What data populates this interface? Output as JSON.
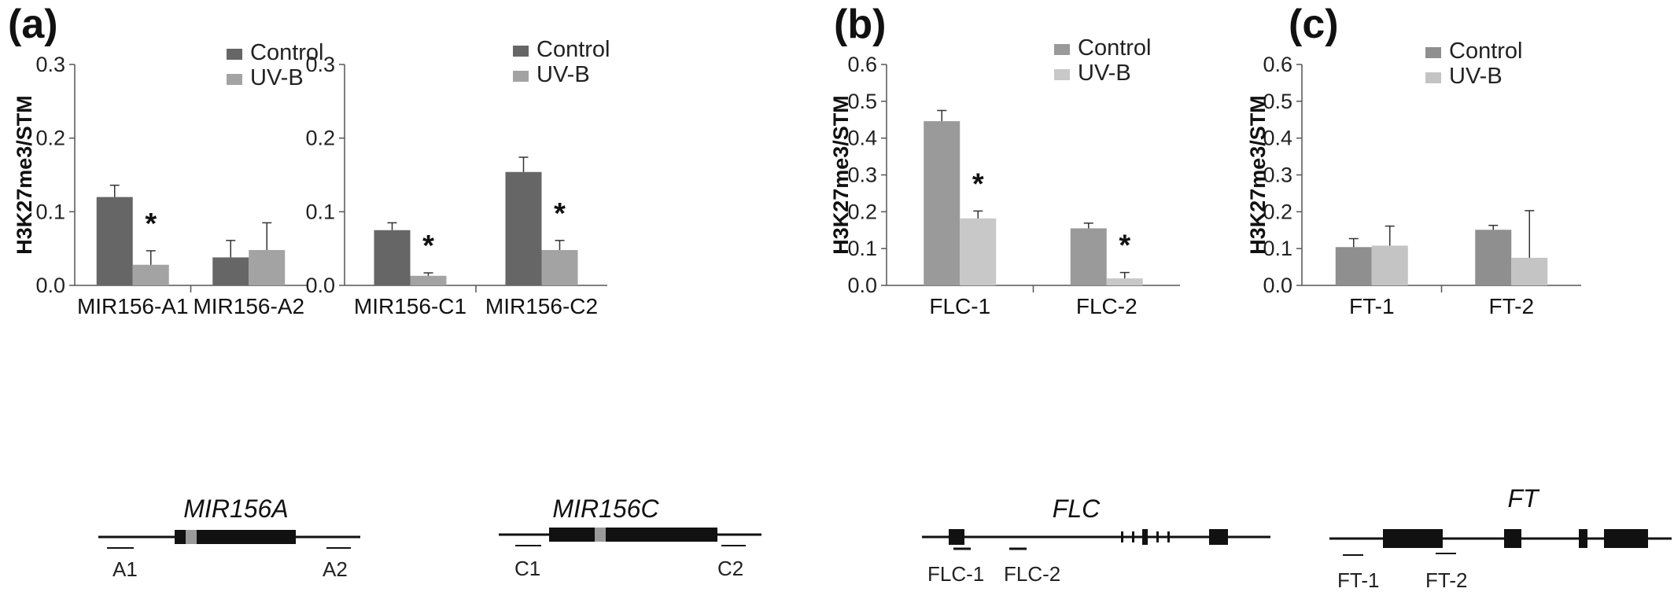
{
  "panel_labels": [
    "(a)",
    "(b)",
    "(c)"
  ],
  "chart_data": [
    {
      "type": "bar",
      "panel": "(a)",
      "ylabel": "H3K27me3/STM",
      "ylim": [
        0,
        0.3
      ],
      "yticks": [
        "0.0",
        "0.1",
        "0.2",
        "0.3"
      ],
      "categories": [
        "MIR156-A1",
        "MIR156-A2"
      ],
      "series": [
        {
          "name": "Control",
          "values": [
            0.12,
            0.038
          ],
          "errors": [
            0.016,
            0.023
          ],
          "color": "#666666"
        },
        {
          "name": "UV-B",
          "values": [
            0.028,
            0.048
          ],
          "errors": [
            0.019,
            0.037
          ],
          "color": "#a3a3a3"
        }
      ],
      "annotations": [
        {
          "text": "*",
          "category": 0
        }
      ],
      "legend": "top-right",
      "show_ylabel": true
    },
    {
      "type": "bar",
      "panel": "(a)",
      "ylabel": "",
      "ylim": [
        0,
        0.3
      ],
      "yticks": [
        "0.0",
        "0.1",
        "0.2",
        "0.3"
      ],
      "categories": [
        "MIR156-C1",
        "MIR156-C2"
      ],
      "series": [
        {
          "name": "Control",
          "values": [
            0.075,
            0.154
          ],
          "errors": [
            0.01,
            0.02
          ],
          "color": "#666666"
        },
        {
          "name": "UV-B",
          "values": [
            0.013,
            0.048
          ],
          "errors": [
            0.004,
            0.013
          ],
          "color": "#a3a3a3"
        }
      ],
      "annotations": [
        {
          "text": "*",
          "category": 0
        },
        {
          "text": "*",
          "category": 1
        }
      ],
      "legend": "top-right",
      "show_ylabel": false
    },
    {
      "type": "bar",
      "panel": "(b)",
      "ylabel": "H3K27me3/STM",
      "ylim": [
        0,
        0.6
      ],
      "yticks": [
        "0.0",
        "0.1",
        "0.2",
        "0.3",
        "0.4",
        "0.5",
        "0.6"
      ],
      "categories": [
        "FLC-1",
        "FLC-2"
      ],
      "series": [
        {
          "name": "Control",
          "values": [
            0.446,
            0.155
          ],
          "errors": [
            0.029,
            0.014
          ],
          "color": "#9a9a9a"
        },
        {
          "name": "UV-B",
          "values": [
            0.182,
            0.019
          ],
          "errors": [
            0.02,
            0.016
          ],
          "color": "#c8c8c8"
        }
      ],
      "annotations": [
        {
          "text": "*",
          "category": 0
        },
        {
          "text": "*",
          "category": 1
        }
      ],
      "legend": "top-right",
      "show_ylabel": true
    },
    {
      "type": "bar",
      "panel": "(c)",
      "ylabel": "H3K27me3/STM",
      "ylim": [
        0,
        0.6
      ],
      "yticks": [
        "0.0",
        "0.1",
        "0.2",
        "0.3",
        "0.4",
        "0.5",
        "0.6"
      ],
      "categories": [
        "FT-1",
        "FT-2"
      ],
      "series": [
        {
          "name": "Control",
          "values": [
            0.104,
            0.151
          ],
          "errors": [
            0.023,
            0.012
          ],
          "color": "#8f8f8f"
        },
        {
          "name": "UV-B",
          "values": [
            0.108,
            0.075
          ],
          "errors": [
            0.053,
            0.128
          ],
          "color": "#c4c4c4"
        }
      ],
      "annotations": [],
      "legend": "top-right",
      "show_ylabel": true
    }
  ],
  "gene_diagrams": [
    {
      "name": "MIR156A",
      "primers": [
        "A1",
        "A2"
      ]
    },
    {
      "name": "MIR156C",
      "primers": [
        "C1",
        "C2"
      ]
    },
    {
      "name": "FLC",
      "primers": [
        "FLC-1",
        "FLC-2"
      ]
    },
    {
      "name": "FT",
      "primers": [
        "FT-1",
        "FT-2"
      ]
    }
  ]
}
